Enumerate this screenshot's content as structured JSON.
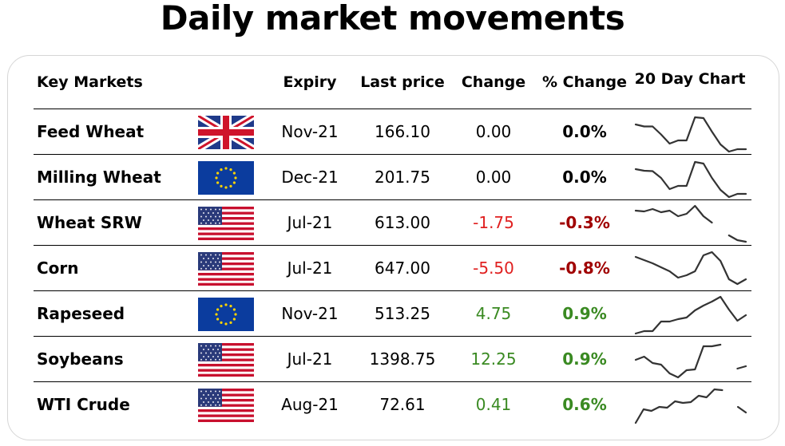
{
  "title": "Daily market movements",
  "headers": {
    "market": "Key Markets",
    "expiry": "Expiry",
    "last_price": "Last price",
    "change": "Change",
    "pct_change": "% Change",
    "chart": "20 Day Chart"
  },
  "colors": {
    "negative_change": "#e02020",
    "negative_pct": "#a00000",
    "positive": "#3a8a22",
    "neutral": "#000000"
  },
  "rows": [
    {
      "market": "Feed Wheat",
      "flag": "uk-flag-icon",
      "expiry": "Nov-21",
      "last_price": "166.10",
      "change": "0.00",
      "pct_change": "0.0%",
      "direction": "neutral",
      "spark": [
        70,
        65,
        65,
        45,
        22,
        30,
        30,
        88,
        86,
        52,
        20,
        2,
        8,
        8
      ]
    },
    {
      "market": "Milling Wheat",
      "flag": "eu-flag-icon",
      "expiry": "Dec-21",
      "last_price": "201.75",
      "change": "0.00",
      "pct_change": "0.0%",
      "direction": "neutral",
      "spark": [
        72,
        68,
        67,
        50,
        22,
        30,
        30,
        90,
        86,
        50,
        20,
        2,
        10,
        10
      ]
    },
    {
      "market": "Wheat SRW",
      "flag": "us-flag-icon",
      "expiry": "Jul-21",
      "last_price": "613.00",
      "change": "-1.75",
      "pct_change": "-0.3%",
      "direction": "negative",
      "spark": [
        82,
        80,
        86,
        78,
        82,
        68,
        74,
        94,
        68,
        52,
        null,
        20,
        8,
        4
      ]
    },
    {
      "market": "Corn",
      "flag": "us-flag-icon",
      "expiry": "Jul-21",
      "last_price": "647.00",
      "change": "-5.50",
      "pct_change": "-0.8%",
      "direction": "negative",
      "spark": [
        80,
        72,
        64,
        54,
        44,
        28,
        34,
        44,
        84,
        92,
        70,
        24,
        12,
        24
      ]
    },
    {
      "market": "Rapeseed",
      "flag": "eu-flag-icon",
      "expiry": "Nov-21",
      "last_price": "513.25",
      "change": "4.75",
      "pct_change": "0.9%",
      "direction": "positive",
      "spark": [
        2,
        8,
        8,
        32,
        32,
        38,
        42,
        60,
        72,
        82,
        94,
        62,
        34,
        48
      ]
    },
    {
      "market": "Soybeans",
      "flag": "us-flag-icon",
      "expiry": "Jul-21",
      "last_price": "1398.75",
      "change": "12.25",
      "pct_change": "0.9%",
      "direction": "positive",
      "spark": [
        50,
        58,
        42,
        38,
        16,
        6,
        24,
        26,
        84,
        84,
        88,
        null,
        28,
        34
      ]
    },
    {
      "market": "WTI Crude",
      "flag": "us-flag-icon",
      "expiry": "Aug-21",
      "last_price": "72.61",
      "change": "0.41",
      "pct_change": "0.6%",
      "direction": "positive",
      "spark": [
        6,
        40,
        36,
        46,
        44,
        60,
        56,
        58,
        74,
        70,
        90,
        88,
        null,
        46,
        32
      ]
    }
  ]
}
